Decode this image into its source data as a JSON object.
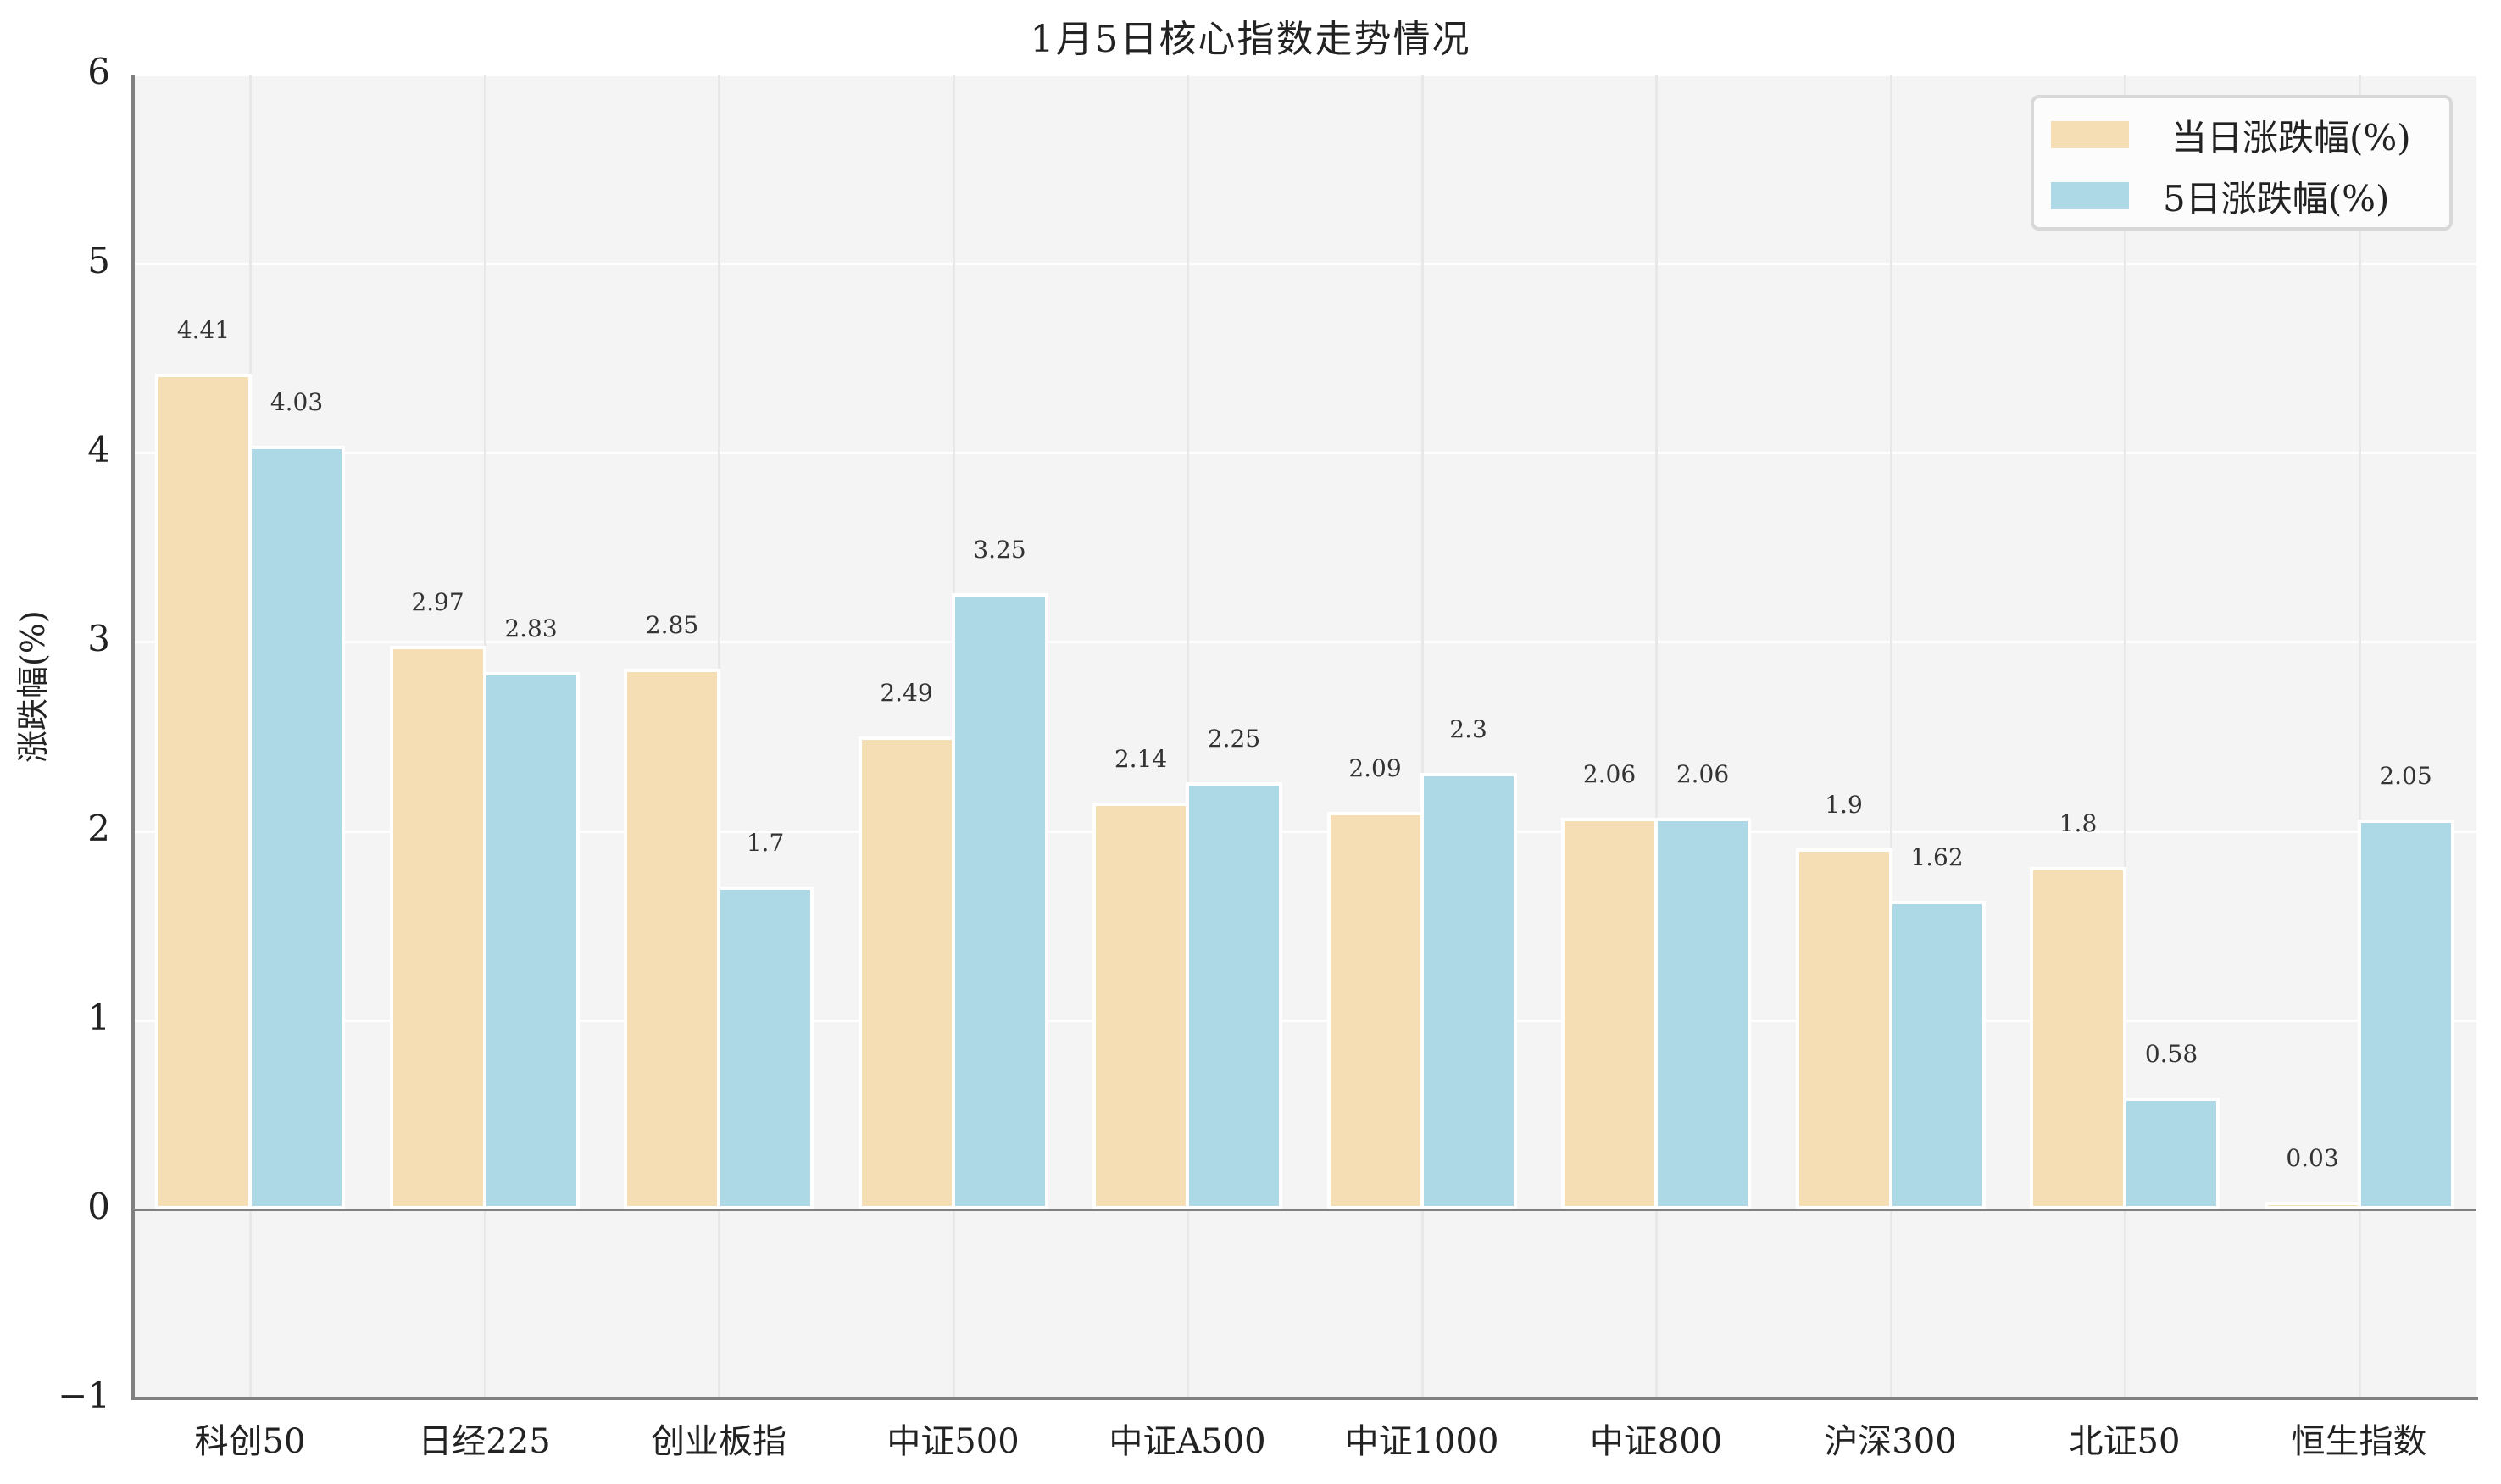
{
  "chart_data": {
    "type": "bar",
    "title": "1月5日核心指数走势情况",
    "xlabel": "",
    "ylabel": "涨跌幅(%)",
    "ylim": [
      -1,
      6
    ],
    "yticks": [
      "6",
      "5",
      "4",
      "3",
      "2",
      "1",
      "0",
      "-1"
    ],
    "grid": true,
    "legend_position": "upper right",
    "categories": [
      "科创50",
      "日经225",
      "创业板指",
      "中证500",
      "中证A500",
      "中证1000",
      "中证800",
      "沪深300",
      "北证50",
      "恒生指数"
    ],
    "series": [
      {
        "name": "当日涨跌幅(%)",
        "color": "#f5deb3",
        "values": [
          4.41,
          2.97,
          2.85,
          2.49,
          2.14,
          2.09,
          2.06,
          1.9,
          1.8,
          0.03
        ],
        "labels": [
          "4.41",
          "2.97",
          "2.85",
          "2.49",
          "2.14",
          "2.09",
          "2.06",
          "1.9",
          "1.8",
          "0.03"
        ]
      },
      {
        "name": "5日涨跌幅(%)",
        "color": "#add8e6",
        "values": [
          4.03,
          2.83,
          1.7,
          3.25,
          2.25,
          2.3,
          2.06,
          1.62,
          0.58,
          2.05
        ],
        "labels": [
          "4.03",
          "2.83",
          "1.7",
          "3.25",
          "2.25",
          "2.3",
          "2.06",
          "1.62",
          "0.58",
          "2.05"
        ]
      }
    ]
  }
}
